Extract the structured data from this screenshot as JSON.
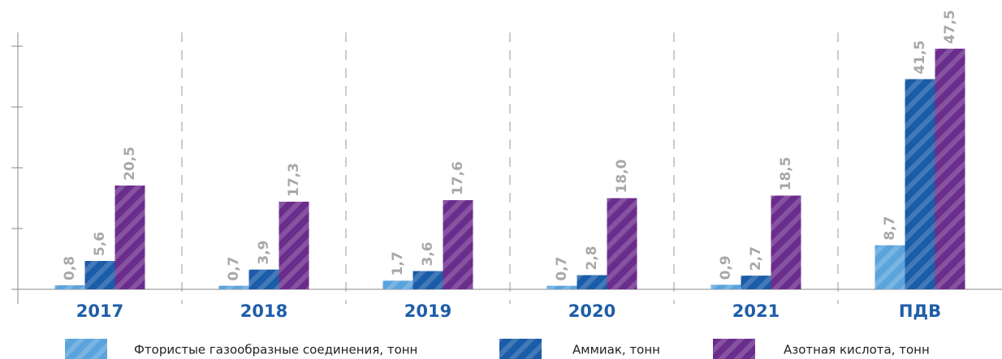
{
  "chart_data": {
    "type": "bar",
    "categories": [
      "2017",
      "2018",
      "2019",
      "2020",
      "2021",
      "ПДВ"
    ],
    "series": [
      {
        "name": "Фтористые газообразные соединения, тонн",
        "color": "#5ba3dc",
        "values": [
          0.8,
          0.7,
          1.7,
          0.7,
          0.9,
          8.7
        ],
        "value_labels": [
          "0,8",
          "0,7",
          "1,7",
          "0,7",
          "0,9",
          "8,7"
        ]
      },
      {
        "name": "Аммиак, тонн",
        "color": "#1a5ca8",
        "values": [
          5.6,
          3.9,
          3.6,
          2.8,
          2.7,
          41.5
        ],
        "value_labels": [
          "5,6",
          "3,9",
          "3,6",
          "2,8",
          "2,7",
          "41,5"
        ]
      },
      {
        "name": "Азотная кислота, тонн",
        "color": "#6b2d8c",
        "values": [
          20.5,
          17.3,
          17.6,
          18.0,
          18.5,
          47.5
        ],
        "value_labels": [
          "20,5",
          "17,3",
          "17,6",
          "18,0",
          "18,5",
          "47,5"
        ]
      }
    ],
    "ylim": [
      0,
      52
    ],
    "yticks": [
      0,
      12,
      24,
      36,
      48
    ]
  }
}
